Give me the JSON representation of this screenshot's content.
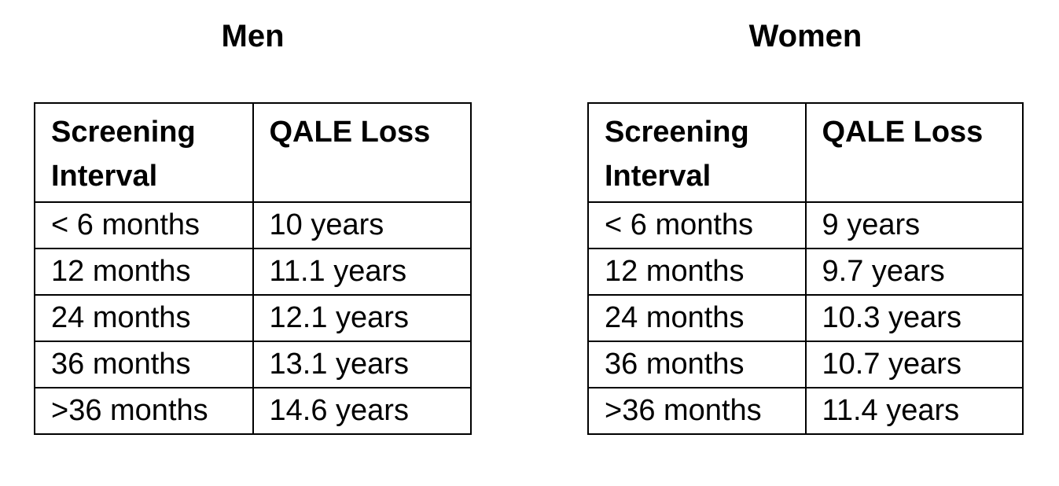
{
  "page": {
    "background_color": "#ffffff",
    "border_color": "#000000",
    "text_color": "#000000"
  },
  "tables": [
    {
      "title": "Men",
      "headers": [
        "Screening Interval",
        "QALE Loss"
      ],
      "rows": [
        [
          "< 6 months",
          "10 years"
        ],
        [
          "12 months",
          "11.1 years"
        ],
        [
          "24 months",
          "12.1 years"
        ],
        [
          "36 months",
          "13.1 years"
        ],
        [
          ">36 months",
          "14.6 years"
        ]
      ]
    },
    {
      "title": "Women",
      "headers": [
        "Screening Interval",
        "QALE Loss"
      ],
      "rows": [
        [
          "< 6 months",
          "9 years"
        ],
        [
          "12 months",
          "9.7 years"
        ],
        [
          "24 months",
          "10.3 years"
        ],
        [
          "36 months",
          "10.7 years"
        ],
        [
          ">36 months",
          "11.4 years"
        ]
      ]
    }
  ]
}
